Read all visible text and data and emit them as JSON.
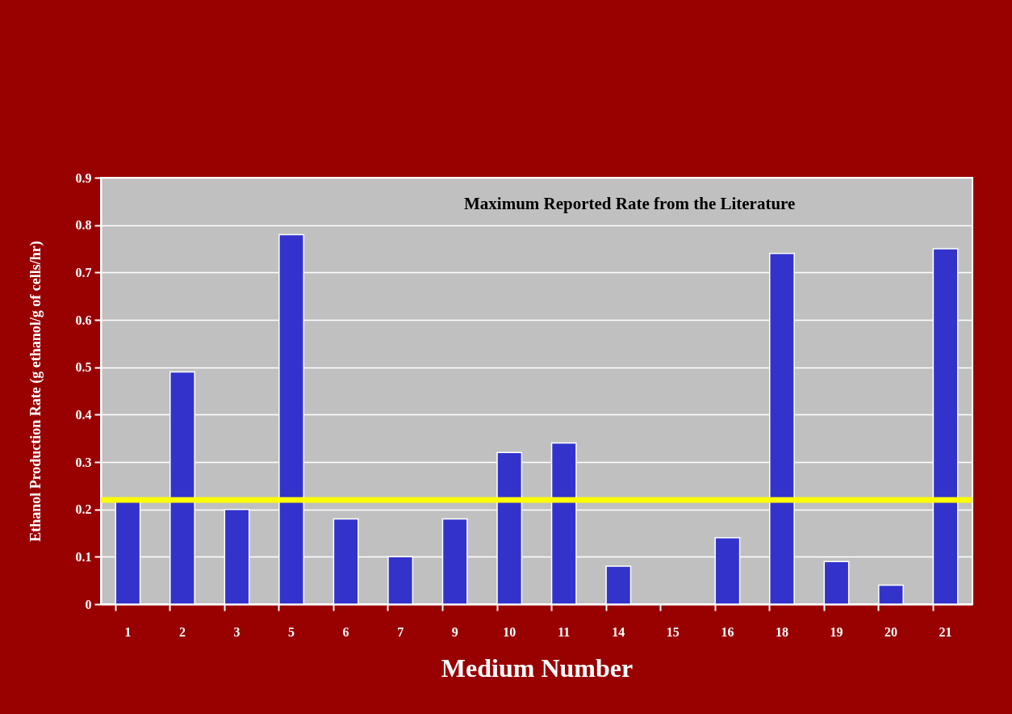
{
  "chart_data": {
    "type": "bar",
    "xlabel": "Medium Number",
    "ylabel": "Ethanol Production Rate (g ethanol/g of cells/hr)",
    "categories": [
      "1",
      "2",
      "3",
      "5",
      "6",
      "7",
      "9",
      "10",
      "11",
      "14",
      "15",
      "16",
      "18",
      "19",
      "20",
      "21"
    ],
    "values": [
      0.22,
      0.49,
      0.2,
      0.78,
      0.18,
      0.1,
      0.18,
      0.32,
      0.34,
      0.08,
      0,
      0.14,
      0.74,
      0.09,
      0.04,
      0.75
    ],
    "color": "#3333cc",
    "ylim": [
      0,
      0.9
    ],
    "yticks": [
      0,
      0.1,
      0.2,
      0.3,
      0.4,
      0.5,
      0.6,
      0.7,
      0.8,
      0.9
    ],
    "grid": "y",
    "ref_lines": [
      {
        "axis": "y",
        "value": 0.22,
        "color": "#ffff00"
      }
    ],
    "annotations": [
      "Maximum Reported Rate from the Literature"
    ]
  }
}
